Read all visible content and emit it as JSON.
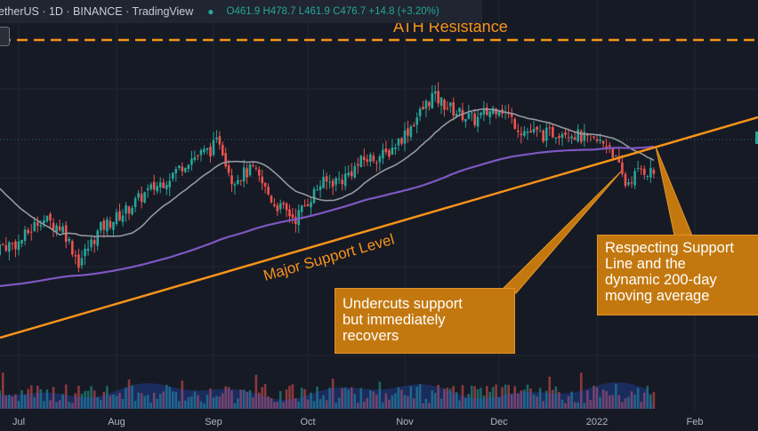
{
  "header": {
    "symbol": "etherUS · 1D · BINANCE · TradingView",
    "ohlc": "O461.9 H478.7 L461.9 C476.7 +14.8 (+3.20%)"
  },
  "annotations": {
    "ath": "ATH Resistance",
    "support": "Major Support Level",
    "callout_undercut": "Undercuts support\nbut immediately\nrecovers",
    "callout_respect": "Respecting Support\nLine and the\ndynamic 200-day\nmoving average"
  },
  "colors": {
    "background": "#161a25",
    "up": "#26a69a",
    "down": "#ef5350",
    "ma_fast": "#9598a1",
    "ma_200": "#7e57c2",
    "annotation": "#f7931a"
  },
  "chart_data": {
    "type": "candlestick",
    "x_ticks": [
      "Jul",
      "Aug",
      "Sep",
      "Oct",
      "Nov",
      "Dec",
      "2022",
      "Feb"
    ],
    "series": [
      {
        "name": "",
        "close_path": [
          [
            "Jun 24",
            400
          ],
          [
            "Jul 1",
            405
          ],
          [
            "Jul 8",
            430
          ],
          [
            "Jul 15",
            420
          ],
          [
            "Jul 20",
            385
          ],
          [
            "Jul 27",
            420
          ],
          [
            "Aug 3",
            435
          ],
          [
            "Aug 10",
            455
          ],
          [
            "Aug 17",
            470
          ],
          [
            "Aug 24",
            490
          ],
          [
            "Aug 31",
            500
          ],
          [
            "Sep 3",
            510
          ],
          [
            "Sep 7",
            470
          ],
          [
            "Sep 14",
            480
          ],
          [
            "Sep 21",
            445
          ],
          [
            "Sep 28",
            430
          ],
          [
            "Oct 5",
            465
          ],
          [
            "Oct 12",
            470
          ],
          [
            "Oct 19",
            490
          ],
          [
            "Oct 26",
            495
          ],
          [
            "Nov 2",
            520
          ],
          [
            "Nov 10",
            555
          ],
          [
            "Nov 17",
            540
          ],
          [
            "Nov 24",
            530
          ],
          [
            "Dec 1",
            545
          ],
          [
            "Dec 8",
            520
          ],
          [
            "Dec 15",
            515
          ],
          [
            "Dec 22",
            520
          ],
          [
            "Dec 29",
            510
          ],
          [
            "Jan 5",
            505
          ],
          [
            "Jan 10",
            465
          ],
          [
            "Jan 15",
            480
          ],
          [
            "Jan 19",
            476.7
          ]
        ]
      }
    ],
    "grid": true,
    "legend": "none"
  }
}
